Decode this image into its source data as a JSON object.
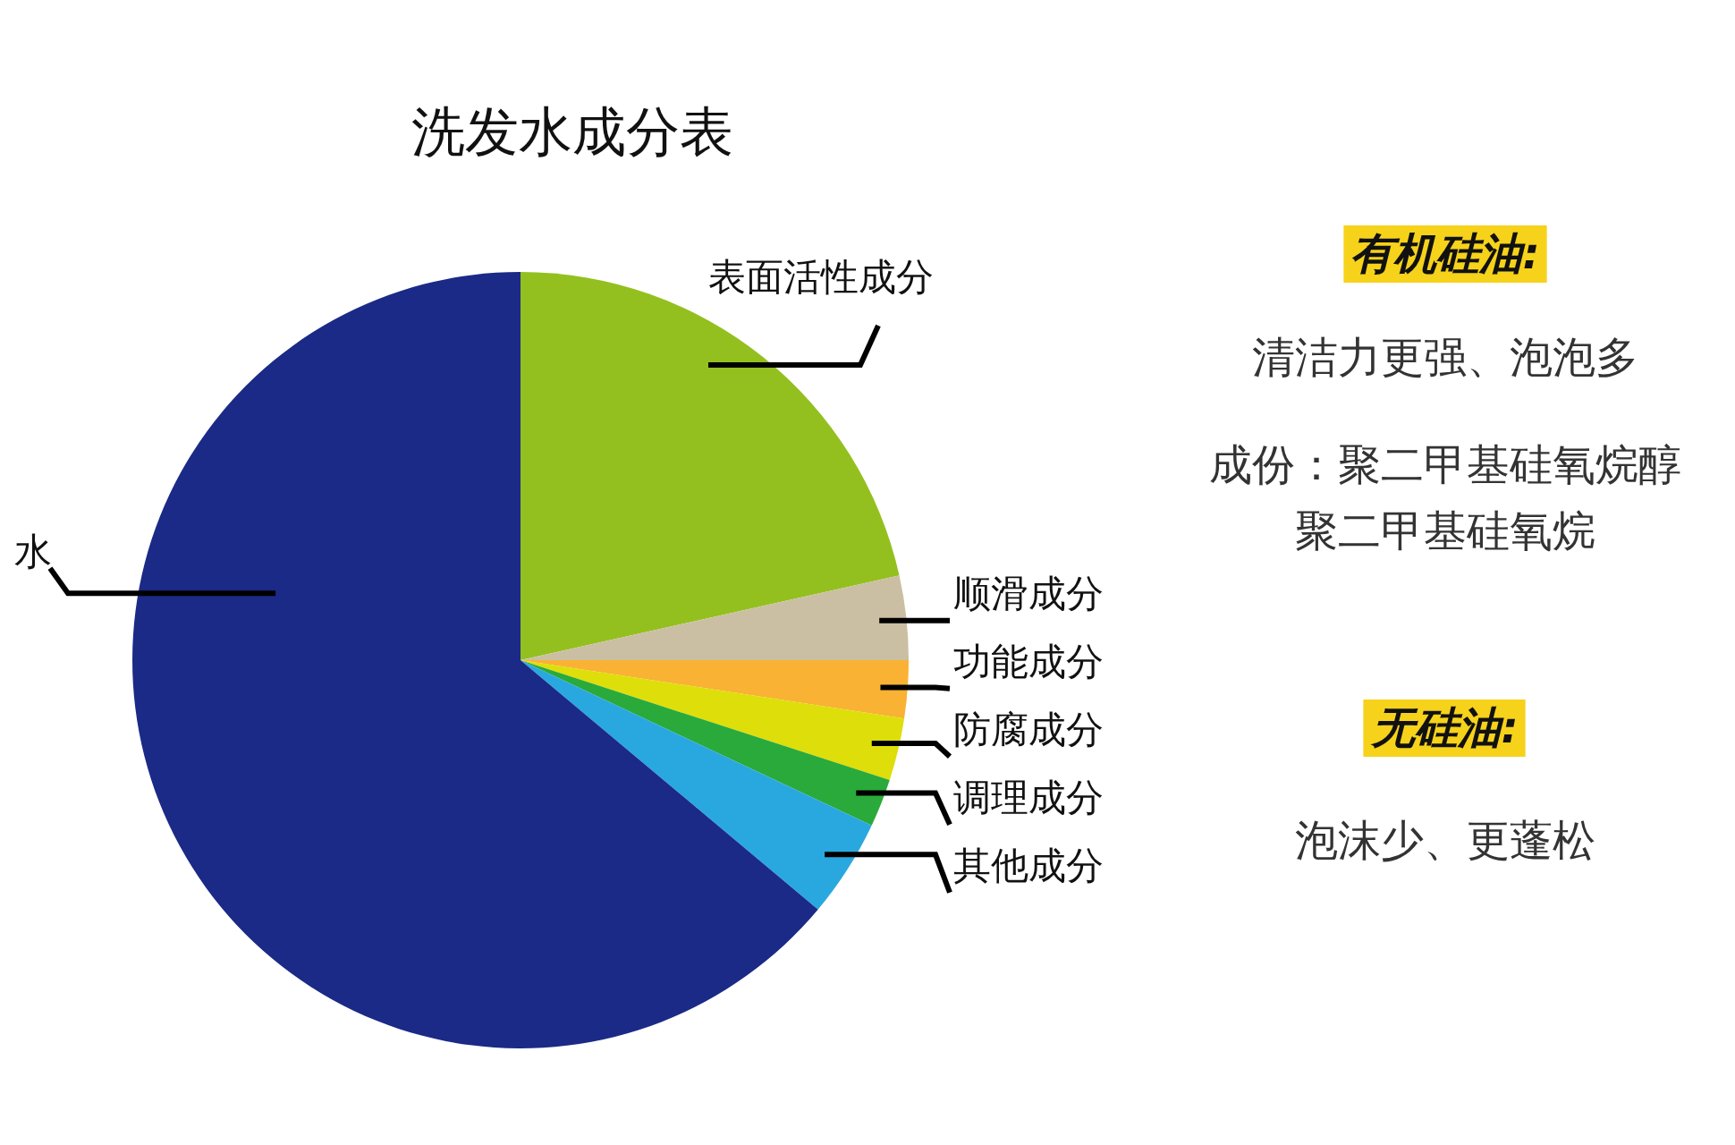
{
  "chart_data": {
    "type": "pie",
    "title": "洗发水成分表",
    "categories": [
      "表面活性成分",
      "顺滑成分",
      "功能成分",
      "防腐成分",
      "调理成分",
      "其他成分",
      "水"
    ],
    "values": [
      21.5,
      3.5,
      2.4,
      2.6,
      2.0,
      4.1,
      63.9
    ],
    "colors": [
      "#93c01f",
      "#cbbfa3",
      "#f9b233",
      "#dede0a",
      "#2aaa3a",
      "#29a8e0",
      "#1a2a86"
    ],
    "annotations": [
      "有机硅油:",
      "清洁力更强、泡泡多",
      "成份：聚二甲基硅氧烷醇",
      "聚二甲基硅氧烷",
      "无硅油:",
      "泡沫少、更蓬松"
    ]
  }
}
